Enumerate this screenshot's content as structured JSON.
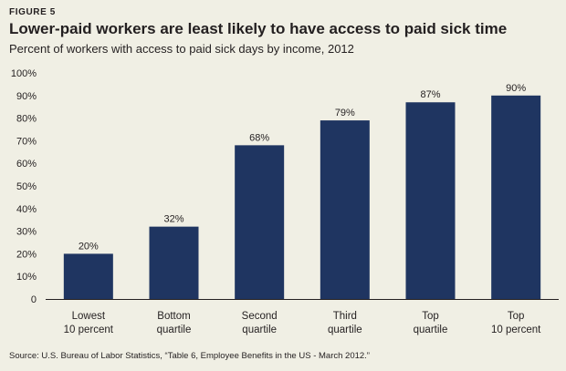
{
  "figure_label": "FIGURE 5",
  "source": "Source: U.S. Bureau of Labor Statistics, “Table 6, Employee Benefits in the US - March 2012.”",
  "colors": {
    "bar": "#1f3561",
    "background": "#f0efe4",
    "axis": "#231f20"
  },
  "chart_data": {
    "type": "bar",
    "title": "Lower-paid workers are least likely to have access to paid sick time",
    "subtitle": "Percent of workers with access to paid sick days by income, 2012",
    "xlabel": "",
    "ylabel": "",
    "categories": [
      [
        "Lowest",
        "10 percent"
      ],
      [
        "Bottom",
        "quartile"
      ],
      [
        "Second",
        "quartile"
      ],
      [
        "Third",
        "quartile"
      ],
      [
        "Top",
        "quartile"
      ],
      [
        "Top",
        "10 percent"
      ]
    ],
    "values": [
      20,
      32,
      68,
      79,
      87,
      90
    ],
    "data_labels": [
      "20%",
      "32%",
      "68%",
      "79%",
      "87%",
      "90%"
    ],
    "ylim": [
      0,
      100
    ],
    "yticks": [
      0,
      10,
      20,
      30,
      40,
      50,
      60,
      70,
      80,
      90,
      100
    ],
    "ytick_labels": [
      "0",
      "10%",
      "20%",
      "30%",
      "40%",
      "50%",
      "60%",
      "70%",
      "80%",
      "90%",
      "100%"
    ],
    "grid": false,
    "legend": "none"
  }
}
